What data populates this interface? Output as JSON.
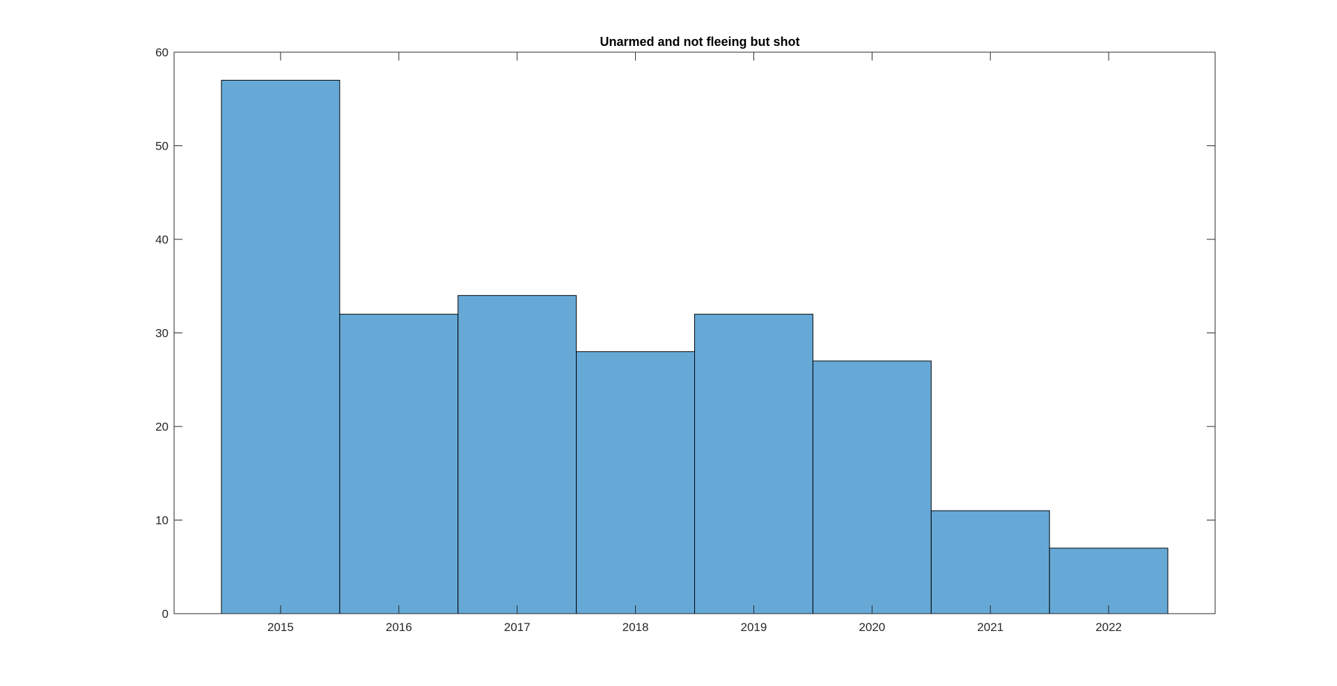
{
  "chart_data": {
    "type": "bar",
    "title": "Unarmed and not fleeing but shot",
    "xlabel": "",
    "ylabel": "",
    "categories": [
      "2015",
      "2016",
      "2017",
      "2018",
      "2019",
      "2020",
      "2021",
      "2022"
    ],
    "values": [
      57,
      32,
      34,
      28,
      32,
      27,
      11,
      7
    ],
    "ylim": [
      0,
      60
    ],
    "yticks": [
      0,
      10,
      20,
      30,
      40,
      50,
      60
    ],
    "xlim": [
      2014.1,
      2022.9
    ],
    "grid": false,
    "legend": "none",
    "bar_width": 1,
    "colors": {
      "bar_fill": "#66a9d7",
      "bar_edge": "#000000",
      "axis": "#262626"
    }
  }
}
